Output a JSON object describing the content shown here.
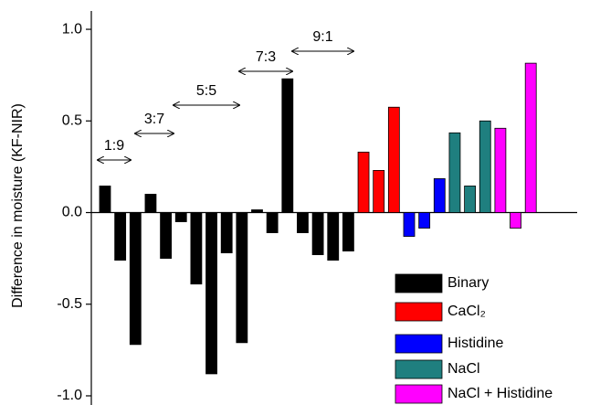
{
  "chart_data": {
    "type": "bar",
    "y_label": "Difference in moisture (KF-NIR)",
    "categories": [
      null,
      null,
      null,
      null,
      null,
      null,
      null,
      null,
      null,
      null,
      null,
      null,
      null,
      null,
      null,
      null,
      null,
      null,
      null,
      null,
      null,
      null,
      null,
      null,
      null,
      null,
      null,
      null,
      null,
      null,
      null,
      null
    ],
    "series": [
      {
        "name": "Binary",
        "color": "#000000",
        "values": [
          0.145,
          -0.26,
          -0.72,
          0.1,
          -0.25,
          -0.05,
          -0.39,
          -0.88,
          -0.22,
          -0.71,
          0.015,
          -0.11,
          0.73,
          -0.11,
          -0.23,
          -0.26,
          -0.21,
          null,
          null,
          null,
          null,
          null,
          null,
          null,
          null,
          null,
          null,
          null,
          null,
          null,
          null,
          null
        ]
      },
      {
        "name": "CaCl₂",
        "color": "#ff0000",
        "values": [
          null,
          null,
          null,
          null,
          null,
          null,
          null,
          null,
          null,
          null,
          null,
          null,
          null,
          null,
          null,
          null,
          null,
          0.33,
          0.23,
          0.575,
          null,
          null,
          null,
          null,
          null,
          null,
          null,
          null,
          null,
          null,
          null,
          null
        ]
      },
      {
        "name": "Histidine",
        "color": "#0000ff",
        "values": [
          null,
          null,
          null,
          null,
          null,
          null,
          null,
          null,
          null,
          null,
          null,
          null,
          null,
          null,
          null,
          null,
          null,
          null,
          null,
          null,
          -0.13,
          -0.085,
          0.185,
          null,
          null,
          null,
          null,
          null,
          null,
          null,
          null,
          null
        ]
      },
      {
        "name": "NaCl",
        "color": "#1f7f7f",
        "values": [
          null,
          null,
          null,
          null,
          null,
          null,
          null,
          null,
          null,
          null,
          null,
          null,
          null,
          null,
          null,
          null,
          null,
          null,
          null,
          null,
          null,
          null,
          null,
          0.435,
          0.145,
          0.5,
          null,
          null,
          null,
          null,
          null,
          null
        ]
      },
      {
        "name": "NaCl + Histidine",
        "color": "#ff00ff",
        "values": [
          null,
          null,
          null,
          null,
          null,
          null,
          null,
          null,
          null,
          null,
          null,
          null,
          null,
          null,
          null,
          null,
          null,
          null,
          null,
          null,
          null,
          null,
          null,
          null,
          null,
          null,
          0.46,
          -0.085,
          0.815,
          null,
          null,
          null
        ]
      }
    ],
    "annotations": [
      "1:9",
      "3:7",
      "5:5",
      "7:3",
      "9:1"
    ],
    "ylim": [
      -1.05,
      1.1
    ],
    "yticks": [
      {
        "value": -1.0,
        "label": "-1.0"
      },
      -0.5,
      {
        "value": 0.0,
        "label": "0.0"
      },
      0.5,
      {
        "value": 1.0,
        "label": "1.0"
      }
    ],
    "legend": "lower right"
  }
}
